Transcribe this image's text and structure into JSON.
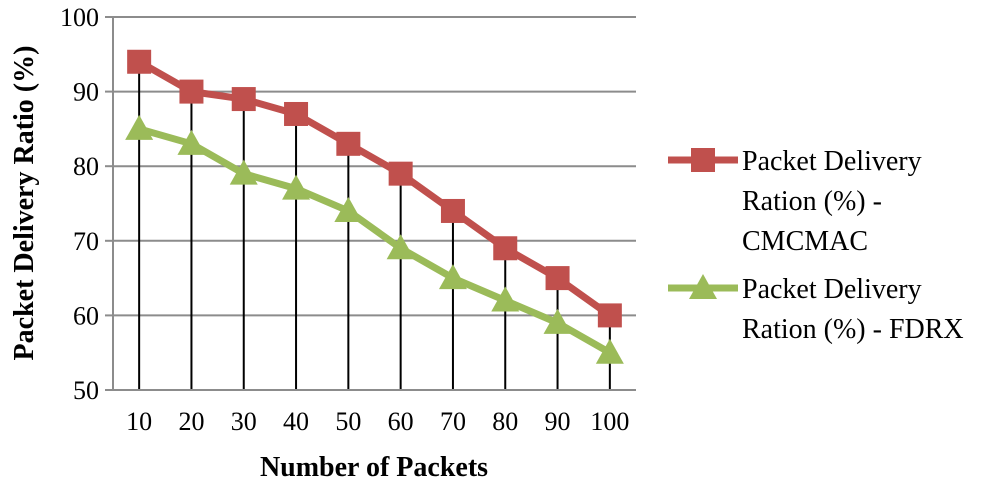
{
  "chart_data": {
    "type": "line",
    "title": "",
    "xlabel": "Number of Packets",
    "ylabel": "Packet Delivery Ratio (%)",
    "categories": [
      "10",
      "20",
      "30",
      "40",
      "50",
      "60",
      "70",
      "80",
      "90",
      "100"
    ],
    "ylim": [
      50,
      100
    ],
    "yticks": [
      "50",
      "60",
      "70",
      "80",
      "90",
      "100"
    ],
    "grid": true,
    "drop_lines": true,
    "legend_position": "right",
    "series": [
      {
        "name": "Packet Delivery Ration (%) - CMCMAC",
        "legend_lines": [
          "Packet Delivery",
          "Ration (%) -",
          "CMCMAC"
        ],
        "values": [
          94,
          90,
          89,
          87,
          83,
          79,
          74,
          69,
          65,
          60
        ],
        "color": "#c0504d",
        "marker": "square"
      },
      {
        "name": "Packet Delivery Ration (%) - FDRX",
        "legend_lines": [
          "Packet Delivery",
          "Ration (%) - FDRX"
        ],
        "values": [
          85,
          83,
          79,
          77,
          74,
          69,
          65,
          62,
          59,
          55
        ],
        "color": "#9bbb59",
        "marker": "triangle"
      }
    ]
  }
}
